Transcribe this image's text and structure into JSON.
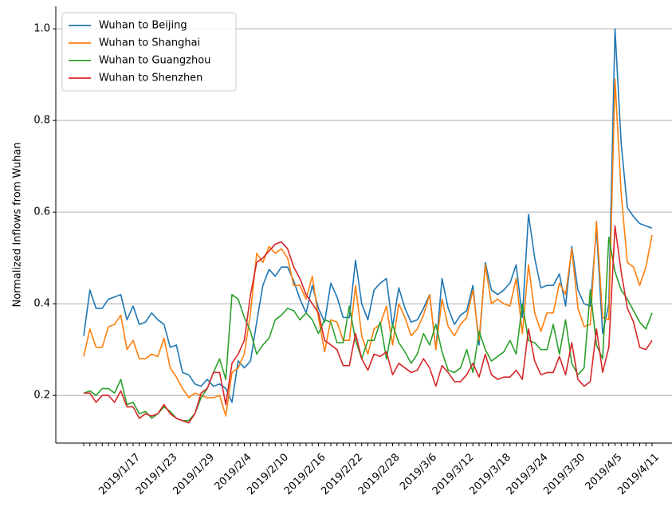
{
  "chart_data": {
    "type": "line",
    "ylabel": "Normalized Inflows from Wuhan",
    "categories": [
      null,
      null,
      null,
      null,
      null,
      null,
      null,
      null,
      "2019/1/17",
      null,
      null,
      null,
      null,
      null,
      "2019/1/23",
      null,
      null,
      null,
      null,
      null,
      "2019/1/29",
      null,
      null,
      null,
      null,
      null,
      "2019/2/4",
      null,
      null,
      null,
      null,
      null,
      "2019/2/10",
      null,
      null,
      null,
      null,
      null,
      "2019/2/16",
      null,
      null,
      null,
      null,
      null,
      "2019/2/22",
      null,
      null,
      null,
      null,
      null,
      "2019/2/28",
      null,
      null,
      null,
      null,
      null,
      "2019/3/6",
      null,
      null,
      null,
      null,
      null,
      "2019/3/12",
      null,
      null,
      null,
      null,
      null,
      "2019/3/18",
      null,
      null,
      null,
      null,
      null,
      "2019/3/24",
      null,
      null,
      null,
      null,
      null,
      "2019/3/30",
      null,
      null,
      null,
      null,
      null,
      "2019/4/5",
      null,
      null,
      null,
      null,
      null,
      "2019/4/11"
    ],
    "series": [
      {
        "name": "Wuhan to Beijing",
        "color": "#1f77b4",
        "values": [
          0.33,
          0.43,
          0.39,
          0.39,
          0.41,
          0.415,
          0.42,
          0.365,
          0.395,
          0.355,
          0.36,
          0.38,
          0.365,
          0.355,
          0.305,
          0.31,
          0.25,
          0.245,
          0.225,
          0.22,
          0.235,
          0.22,
          0.225,
          0.215,
          0.185,
          0.275,
          0.26,
          0.275,
          0.36,
          0.44,
          0.475,
          0.46,
          0.48,
          0.48,
          0.45,
          0.41,
          0.38,
          0.44,
          0.39,
          0.36,
          0.445,
          0.415,
          0.37,
          0.37,
          0.495,
          0.4,
          0.365,
          0.43,
          0.445,
          0.455,
          0.35,
          0.435,
          0.39,
          0.36,
          0.365,
          0.39,
          0.42,
          0.3,
          0.455,
          0.39,
          0.355,
          0.375,
          0.385,
          0.44,
          0.31,
          0.49,
          0.43,
          0.42,
          0.43,
          0.445,
          0.485,
          0.37,
          0.595,
          0.5,
          0.435,
          0.44,
          0.44,
          0.465,
          0.395,
          0.525,
          0.43,
          0.4,
          0.395,
          0.565,
          0.335,
          0.4,
          1.0,
          0.75,
          0.61,
          0.59,
          0.575,
          0.57,
          0.565
        ]
      },
      {
        "name": "Wuhan to Shanghai",
        "color": "#ff7f0e",
        "values": [
          0.285,
          0.345,
          0.305,
          0.305,
          0.35,
          0.355,
          0.375,
          0.3,
          0.32,
          0.28,
          0.28,
          0.29,
          0.285,
          0.325,
          0.26,
          0.24,
          0.215,
          0.195,
          0.205,
          0.2,
          0.195,
          0.195,
          0.2,
          0.155,
          0.25,
          0.26,
          0.29,
          0.38,
          0.51,
          0.49,
          0.525,
          0.51,
          0.52,
          0.5,
          0.44,
          0.44,
          0.41,
          0.46,
          0.37,
          0.295,
          0.365,
          0.36,
          0.32,
          0.32,
          0.44,
          0.33,
          0.29,
          0.345,
          0.355,
          0.395,
          0.31,
          0.4,
          0.37,
          0.33,
          0.345,
          0.375,
          0.42,
          0.3,
          0.41,
          0.35,
          0.33,
          0.355,
          0.37,
          0.43,
          0.32,
          0.485,
          0.4,
          0.41,
          0.4,
          0.395,
          0.455,
          0.335,
          0.485,
          0.38,
          0.34,
          0.38,
          0.38,
          0.445,
          0.42,
          0.52,
          0.39,
          0.35,
          0.355,
          0.58,
          0.37,
          0.365,
          0.89,
          0.64,
          0.49,
          0.48,
          0.44,
          0.48,
          0.55
        ]
      },
      {
        "name": "Wuhan to Guangzhou",
        "color": "#2ca02c",
        "values": [
          0.205,
          0.21,
          0.2,
          0.215,
          0.215,
          0.205,
          0.235,
          0.18,
          0.185,
          0.16,
          0.165,
          0.15,
          0.16,
          0.175,
          0.165,
          0.15,
          0.145,
          0.145,
          0.16,
          0.195,
          0.215,
          0.25,
          0.28,
          0.235,
          0.42,
          0.41,
          0.37,
          0.34,
          0.29,
          0.31,
          0.325,
          0.365,
          0.375,
          0.39,
          0.385,
          0.365,
          0.38,
          0.365,
          0.335,
          0.365,
          0.36,
          0.315,
          0.315,
          0.395,
          0.32,
          0.28,
          0.32,
          0.32,
          0.36,
          0.28,
          0.355,
          0.315,
          0.295,
          0.27,
          0.29,
          0.335,
          0.31,
          0.355,
          0.295,
          0.255,
          0.25,
          0.26,
          0.3,
          0.25,
          0.34,
          0.3,
          0.275,
          0.285,
          0.295,
          0.32,
          0.29,
          0.4,
          0.32,
          0.315,
          0.3,
          0.3,
          0.355,
          0.29,
          0.365,
          0.27,
          0.245,
          0.26,
          0.43,
          0.31,
          0.28,
          0.545,
          0.47,
          0.43,
          0.41,
          0.385,
          0.36,
          0.345,
          0.38
        ]
      },
      {
        "name": "Wuhan to Shenzhen",
        "color": "#d62728",
        "values": [
          0.205,
          0.205,
          0.185,
          0.2,
          0.2,
          0.185,
          0.21,
          0.175,
          0.175,
          0.15,
          0.16,
          0.155,
          0.16,
          0.18,
          0.16,
          0.15,
          0.145,
          0.14,
          0.16,
          0.205,
          0.215,
          0.25,
          0.25,
          0.18,
          0.27,
          0.29,
          0.32,
          0.42,
          0.49,
          0.5,
          0.515,
          0.53,
          0.535,
          0.52,
          0.48,
          0.455,
          0.42,
          0.4,
          0.38,
          0.32,
          0.31,
          0.3,
          0.265,
          0.265,
          0.335,
          0.28,
          0.255,
          0.29,
          0.285,
          0.295,
          0.245,
          0.27,
          0.26,
          0.25,
          0.255,
          0.28,
          0.26,
          0.22,
          0.265,
          0.25,
          0.23,
          0.23,
          0.245,
          0.27,
          0.24,
          0.29,
          0.245,
          0.235,
          0.24,
          0.24,
          0.255,
          0.235,
          0.345,
          0.275,
          0.245,
          0.25,
          0.25,
          0.285,
          0.245,
          0.315,
          0.235,
          0.22,
          0.23,
          0.345,
          0.25,
          0.305,
          0.57,
          0.47,
          0.39,
          0.36,
          0.305,
          0.3,
          0.32
        ]
      }
    ],
    "ylim": [
      0.096,
      1.049
    ],
    "yticks": [
      0.2,
      0.4,
      0.6,
      0.8,
      {
        "value": 1,
        "label": "1.0"
      }
    ],
    "grid": true,
    "legend": "upper left"
  }
}
